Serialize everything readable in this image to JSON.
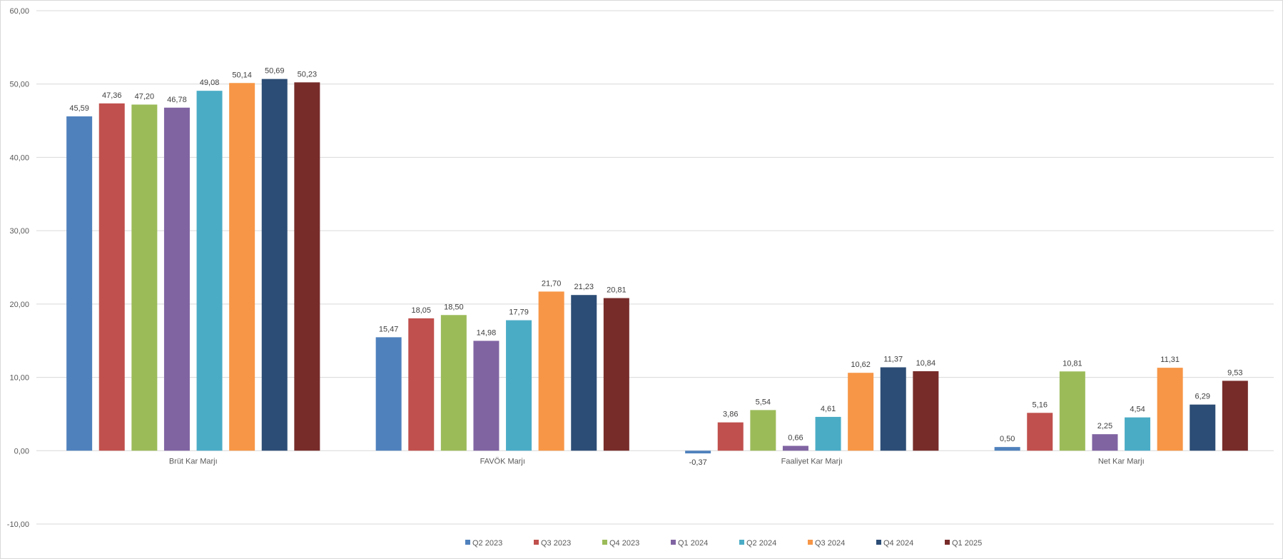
{
  "chart_data": {
    "type": "bar",
    "title": "",
    "xlabel": "",
    "ylabel": "",
    "ylim": [
      -10,
      60
    ],
    "y_ticks": [
      "-10,00",
      "0,00",
      "10,00",
      "20,00",
      "30,00",
      "40,00",
      "50,00",
      "60,00"
    ],
    "grid": true,
    "legend_position": "bottom",
    "categories": [
      "Brüt Kar Marjı",
      "FAVÖK Marjı",
      "Faaliyet Kar Marjı",
      "Net Kar Marjı"
    ],
    "series": [
      {
        "name": "Q2 2023",
        "color": "#4f81bd",
        "values": [
          45.59,
          15.47,
          -0.37,
          0.5
        ],
        "labels": [
          "45,59",
          "15,47",
          "-0,37",
          "0,50"
        ]
      },
      {
        "name": "Q3 2023",
        "color": "#c0504d",
        "values": [
          47.36,
          18.05,
          3.86,
          5.16
        ],
        "labels": [
          "47,36",
          "18,05",
          "3,86",
          "5,16"
        ]
      },
      {
        "name": "Q4 2023",
        "color": "#9bbb59",
        "values": [
          47.2,
          18.5,
          5.54,
          10.81
        ],
        "labels": [
          "47,20",
          "18,50",
          "5,54",
          "10,81"
        ]
      },
      {
        "name": "Q1 2024",
        "color": "#8064a2",
        "values": [
          46.78,
          14.98,
          0.66,
          2.25
        ],
        "labels": [
          "46,78",
          "14,98",
          "0,66",
          "2,25"
        ]
      },
      {
        "name": "Q2 2024",
        "color": "#4bacc6",
        "values": [
          49.08,
          17.79,
          4.61,
          4.54
        ],
        "labels": [
          "49,08",
          "17,79",
          "4,61",
          "4,54"
        ]
      },
      {
        "name": "Q3 2024",
        "color": "#f79646",
        "values": [
          50.14,
          21.7,
          10.62,
          11.31
        ],
        "labels": [
          "50,14",
          "21,70",
          "10,62",
          "11,31"
        ]
      },
      {
        "name": "Q4 2024",
        "color": "#2c4d75",
        "values": [
          50.69,
          21.23,
          11.37,
          6.29
        ],
        "labels": [
          "50,69",
          "21,23",
          "11,37",
          "6,29"
        ]
      },
      {
        "name": "Q1 2025",
        "color": "#772c2a",
        "values": [
          50.23,
          20.81,
          10.84,
          9.53
        ],
        "labels": [
          "50,23",
          "20,81",
          "10,84",
          "9,53"
        ]
      }
    ]
  }
}
